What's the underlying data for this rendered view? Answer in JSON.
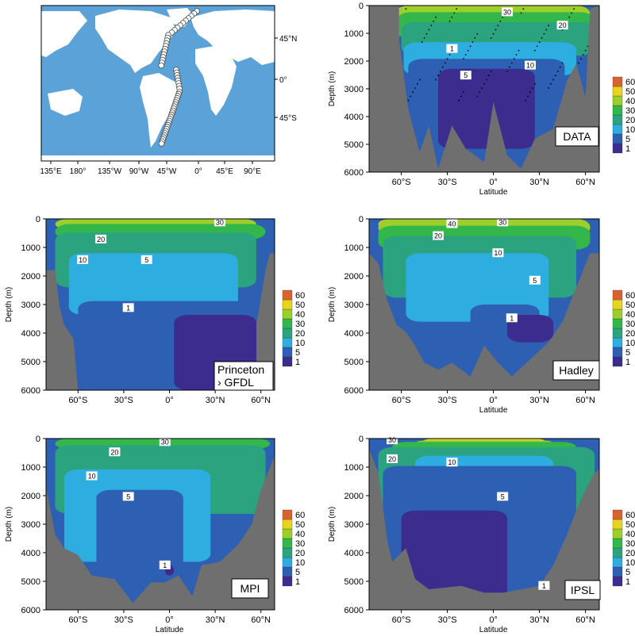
{
  "colors": {
    "ocean": "#5aa2d8",
    "land": "#ffffff",
    "bathymetry": "#6f6f6f",
    "label_box": "#ffffff"
  },
  "colorbar": {
    "levels": [
      "1",
      "5",
      "10",
      "20",
      "30",
      "40",
      "50",
      "60"
    ],
    "colors": [
      "#3b2c8e",
      "#2d5fb3",
      "#2eaee0",
      "#2aa37e",
      "#33b64a",
      "#9ccf2a",
      "#e6d41e",
      "#d8632f"
    ]
  },
  "map_panel": {
    "x_ticks": [
      "135°E",
      "180°",
      "135°W",
      "90°W",
      "45°W",
      "0°",
      "45°E",
      "90°E"
    ],
    "y_ticks": [
      "45°N",
      "0°",
      "45°S"
    ],
    "stations": "cruise-track circles in the Atlantic"
  },
  "chart_data": [
    {
      "type": "heatmap",
      "label": "DATA",
      "ylabel": "Depth (m)",
      "xlabel": "Latitude",
      "x_ticks": [
        "60°S",
        "30°S",
        "0°",
        "30°N",
        "60°N"
      ],
      "y_ticks": [
        "0",
        "1000",
        "2000",
        "3000",
        "4000",
        "5000",
        "6000"
      ],
      "ylim": [
        6000,
        0
      ],
      "contour_labels": [
        "30",
        "20",
        "10",
        "5",
        "1"
      ]
    },
    {
      "type": "heatmap",
      "label_lines": [
        "Princeton",
        "› GFDL"
      ],
      "ylabel": "Depth (m)",
      "xlabel": "",
      "x_ticks": [
        "60°S",
        "30°S",
        "0°",
        "30°N",
        "60°N"
      ],
      "y_ticks": [
        "0",
        "1000",
        "2000",
        "3000",
        "4000",
        "5000",
        "6000"
      ],
      "ylim": [
        6000,
        0
      ],
      "contour_labels": [
        "20",
        "30",
        "10",
        "5",
        "1"
      ]
    },
    {
      "type": "heatmap",
      "label": "Hadley",
      "ylabel": "Depth (m)",
      "xlabel": "Latitude",
      "x_ticks": [
        "60°S",
        "30°S",
        "0°",
        "30°N",
        "60°N"
      ],
      "y_ticks": [
        "0",
        "1000",
        "2000",
        "3000",
        "4000",
        "5000",
        "6000"
      ],
      "ylim": [
        6000,
        0
      ],
      "contour_labels": [
        "40",
        "30",
        "20",
        "10",
        "5",
        "1"
      ]
    },
    {
      "type": "heatmap",
      "label": "MPI",
      "ylabel": "Depth (m)",
      "xlabel": "Latitude",
      "x_ticks": [
        "60°S",
        "30°S",
        "0°",
        "30°N",
        "60°N"
      ],
      "y_ticks": [
        "0",
        "1000",
        "2000",
        "3000",
        "4000",
        "5000",
        "6000"
      ],
      "ylim": [
        6000,
        0
      ],
      "contour_labels": [
        "30",
        "20",
        "10",
        "5",
        "1"
      ]
    },
    {
      "type": "heatmap",
      "label": "IPSL",
      "ylabel": "Depth (m)",
      "xlabel": "Latitude",
      "x_ticks": [
        "60°S",
        "30°S",
        "0°",
        "30°N",
        "60°N"
      ],
      "y_ticks": [
        "0",
        "1000",
        "2000",
        "3000",
        "4000",
        "5000",
        "6000"
      ],
      "ylim": [
        6000,
        0
      ],
      "contour_labels": [
        "30",
        "20",
        "10",
        "5",
        "1"
      ]
    }
  ]
}
